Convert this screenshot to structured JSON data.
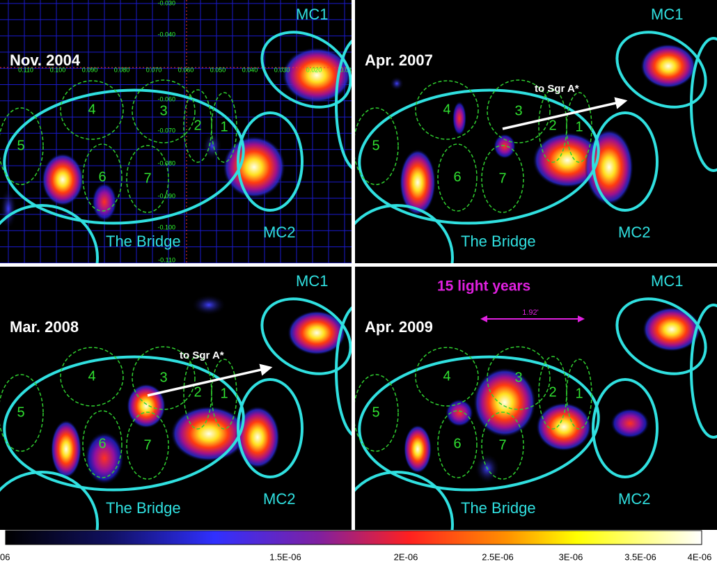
{
  "panels": [
    {
      "title": "Nov. 2004",
      "mc1": "MC1",
      "mc2": "MC2",
      "bridge": "The Bridge",
      "regions": [
        "1",
        "2",
        "3",
        "4",
        "5",
        "6",
        "7"
      ],
      "grid": {
        "x_labels": [
          "0.110",
          "0.100",
          "0.090",
          "0.080",
          "0.070",
          "0.060",
          "0.050",
          "0.040",
          "0.030",
          "0.020",
          "0.01"
        ],
        "y_labels": [
          "-0.030",
          "-0.040",
          "-0.060",
          "-0.070",
          "-0.080",
          "-0.090",
          "-0.100",
          "-0.110"
        ]
      }
    },
    {
      "title": "Apr. 2007",
      "mc1": "MC1",
      "mc2": "MC2",
      "bridge": "The Bridge",
      "regions": [
        "1",
        "2",
        "3",
        "4",
        "5",
        "6",
        "7"
      ],
      "arrow": "to Sgr A*"
    },
    {
      "title": "Mar. 2008",
      "mc1": "MC1",
      "mc2": "MC2",
      "bridge": "The Bridge",
      "regions": [
        "1",
        "2",
        "3",
        "4",
        "5",
        "6",
        "7"
      ],
      "arrow": "to Sgr A*"
    },
    {
      "title": "Apr. 2009",
      "mc1": "MC1",
      "mc2": "MC2",
      "bridge": "The Bridge",
      "regions": [
        "1",
        "2",
        "3",
        "4",
        "5",
        "6",
        "7"
      ],
      "scale": {
        "text": "15 light years",
        "size": "1.92'"
      }
    }
  ],
  "colorbar": {
    "labels": [
      "06",
      "1.5E-06",
      "2E-06",
      "2.5E-06",
      "3E-06",
      "3.5E-06",
      "4E-06"
    ]
  }
}
